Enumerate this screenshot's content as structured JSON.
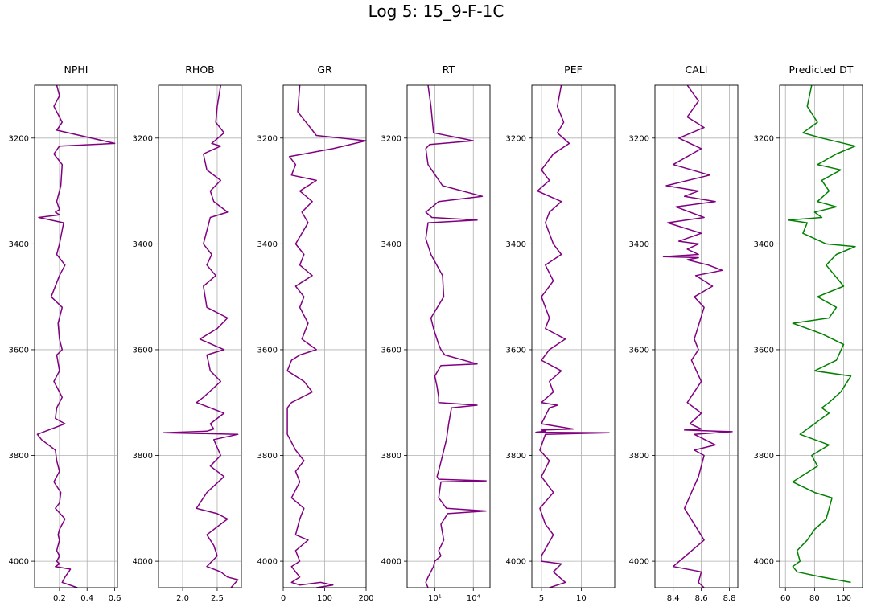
{
  "title": "Log 5: 15_9-F-1C",
  "colors": {
    "track": "#800080",
    "predicted": "#008000",
    "grid": "#b0b0b0",
    "axes": "#000000"
  },
  "chart_data": [
    {
      "type": "line",
      "title": "NPHI",
      "grid": true,
      "xscale": "linear",
      "xlim": [
        0.02,
        0.62
      ],
      "ylim": [
        4050,
        3100
      ],
      "xticks": [
        0.2,
        0.4,
        0.6
      ],
      "xticklabels": [
        "0.2",
        "0.4",
        "0.6"
      ],
      "yticks": [
        3200,
        3400,
        3600,
        3800,
        4000
      ],
      "yticklabels": [
        "3200",
        "3400",
        "3600",
        "3800",
        "4000"
      ],
      "series": [
        {
          "color": "#800080",
          "x": [
            0.18,
            0.2,
            0.16,
            0.22,
            0.18,
            0.6,
            0.2,
            0.16,
            0.22,
            0.21,
            0.18,
            0.2,
            0.17,
            0.2,
            0.05,
            0.23,
            0.2,
            0.18,
            0.24,
            0.2,
            0.14,
            0.22,
            0.19,
            0.2,
            0.22,
            0.18,
            0.2,
            0.16,
            0.22,
            0.2,
            0.18,
            0.17,
            0.24,
            0.04,
            0.07,
            0.17,
            0.18,
            0.2,
            0.16,
            0.21,
            0.2,
            0.17,
            0.24,
            0.2,
            0.19,
            0.2,
            0.18,
            0.2,
            0.18,
            0.2,
            0.17,
            0.28,
            0.24,
            0.22,
            0.33
          ],
          "y": [
            3100,
            3120,
            3140,
            3170,
            3185,
            3210,
            3215,
            3230,
            3250,
            3290,
            3320,
            3335,
            3340,
            3345,
            3350,
            3360,
            3400,
            3420,
            3440,
            3460,
            3500,
            3520,
            3550,
            3580,
            3600,
            3610,
            3640,
            3660,
            3690,
            3700,
            3710,
            3730,
            3740,
            3760,
            3770,
            3790,
            3810,
            3830,
            3850,
            3870,
            3890,
            3900,
            3920,
            3940,
            3950,
            3960,
            3980,
            3990,
            4000,
            4005,
            4010,
            4015,
            4030,
            4040,
            4050
          ]
        }
      ]
    },
    {
      "type": "line",
      "title": "RHOB",
      "grid": true,
      "xscale": "linear",
      "xlim": [
        1.65,
        2.85
      ],
      "ylim": [
        4050,
        3100
      ],
      "xticks": [
        2.0,
        2.5
      ],
      "xticklabels": [
        "2.0",
        "2.5"
      ],
      "yticks": [
        3200,
        3400,
        3600,
        3800,
        4000
      ],
      "yticklabels": [
        "3200",
        "3400",
        "3600",
        "3800",
        "4000"
      ],
      "series": [
        {
          "color": "#800080",
          "x": [
            2.55,
            2.5,
            2.48,
            2.6,
            2.42,
            2.55,
            2.3,
            2.35,
            2.55,
            2.4,
            2.45,
            2.65,
            2.4,
            2.3,
            2.42,
            2.35,
            2.48,
            2.3,
            2.35,
            2.65,
            2.5,
            2.25,
            2.6,
            2.35,
            2.4,
            2.55,
            2.3,
            2.2,
            2.6,
            2.4,
            2.45,
            2.35,
            1.72,
            2.8,
            2.45,
            2.55,
            2.4,
            2.6,
            2.35,
            2.2,
            2.5,
            2.65,
            2.35,
            2.45,
            2.5,
            2.35,
            2.55,
            2.65,
            2.8,
            2.7
          ],
          "y": [
            3100,
            3140,
            3170,
            3190,
            3210,
            3215,
            3230,
            3260,
            3280,
            3300,
            3320,
            3340,
            3350,
            3400,
            3420,
            3440,
            3460,
            3480,
            3520,
            3540,
            3560,
            3580,
            3600,
            3610,
            3640,
            3660,
            3690,
            3700,
            3720,
            3740,
            3750,
            3754,
            3757,
            3760,
            3770,
            3800,
            3820,
            3840,
            3870,
            3900,
            3910,
            3920,
            3950,
            3970,
            3990,
            4010,
            4020,
            4030,
            4035,
            4050
          ]
        }
      ]
    },
    {
      "type": "line",
      "title": "GR",
      "grid": true,
      "xscale": "linear",
      "xlim": [
        0,
        200
      ],
      "ylim": [
        4050,
        3100
      ],
      "xticks": [
        0,
        100,
        200
      ],
      "xticklabels": [
        "0",
        "100",
        "200"
      ],
      "yticks": [
        3200,
        3400,
        3600,
        3800,
        4000
      ],
      "yticklabels": [
        "3200",
        "3400",
        "3600",
        "3800",
        "4000"
      ],
      "series": [
        {
          "color": "#800080",
          "x": [
            40,
            35,
            55,
            70,
            80,
            200,
            120,
            15,
            30,
            20,
            80,
            40,
            70,
            45,
            60,
            30,
            50,
            40,
            70,
            30,
            50,
            40,
            60,
            45,
            80,
            40,
            20,
            10,
            50,
            70,
            20,
            10,
            10,
            30,
            50,
            30,
            40,
            20,
            50,
            40,
            30,
            60,
            30,
            40,
            20,
            30,
            40,
            20,
            40,
            90,
            120,
            80
          ],
          "y": [
            3100,
            3150,
            3170,
            3185,
            3195,
            3205,
            3220,
            3235,
            3250,
            3270,
            3280,
            3300,
            3320,
            3340,
            3360,
            3400,
            3420,
            3440,
            3460,
            3480,
            3500,
            3520,
            3550,
            3580,
            3600,
            3610,
            3620,
            3640,
            3660,
            3680,
            3700,
            3710,
            3760,
            3790,
            3810,
            3830,
            3850,
            3880,
            3900,
            3920,
            3950,
            3960,
            3980,
            4000,
            4010,
            4020,
            4030,
            4040,
            4045,
            4040,
            4045,
            4050
          ]
        }
      ]
    },
    {
      "type": "line",
      "title": "RT",
      "grid": true,
      "xscale": "log",
      "xlim": [
        0.07,
        200000
      ],
      "ylim": [
        4050,
        3100
      ],
      "xticks": [
        10,
        10000
      ],
      "xticklabels": [
        "10¹",
        "10⁴"
      ],
      "yticks": [
        3200,
        3400,
        3600,
        3800,
        4000
      ],
      "yticklabels": [
        "3200",
        "3400",
        "3600",
        "3800",
        "4000"
      ],
      "series": [
        {
          "color": "#800080",
          "x": [
            3,
            5,
            8,
            10000,
            4,
            2,
            3,
            40,
            50000,
            20,
            2,
            6,
            20000,
            3,
            2,
            5,
            40,
            50,
            5,
            8,
            20,
            30,
            60,
            20000,
            30,
            10,
            15,
            20,
            20,
            20000,
            200,
            120,
            80,
            40,
            25,
            15,
            20,
            100000,
            30,
            20,
            80,
            100000,
            100,
            30,
            50,
            20,
            30,
            10,
            8,
            3,
            2,
            3
          ],
          "y": [
            3100,
            3140,
            3190,
            3205,
            3212,
            3220,
            3250,
            3290,
            3310,
            3320,
            3340,
            3350,
            3355,
            3360,
            3390,
            3420,
            3460,
            3500,
            3540,
            3560,
            3590,
            3600,
            3610,
            3627,
            3630,
            3650,
            3670,
            3690,
            3700,
            3705,
            3710,
            3740,
            3770,
            3800,
            3820,
            3840,
            3845,
            3848,
            3850,
            3880,
            3900,
            3905,
            3910,
            3930,
            3960,
            3980,
            3990,
            4000,
            4010,
            4030,
            4040,
            4050
          ]
        }
      ]
    },
    {
      "type": "line",
      "title": "PEF",
      "grid": true,
      "xscale": "linear",
      "xlim": [
        3.8,
        14.2
      ],
      "ylim": [
        4050,
        3100
      ],
      "xticks": [
        5,
        10
      ],
      "xticklabels": [
        "5",
        "10"
      ],
      "yticks": [
        3200,
        3400,
        3600,
        3800,
        4000
      ],
      "yticklabels": [
        "3200",
        "3400",
        "3600",
        "3800",
        "4000"
      ],
      "series": [
        {
          "color": "#800080",
          "x": [
            7.5,
            7.0,
            7.8,
            7.0,
            8.5,
            6.5,
            5.0,
            6.0,
            4.5,
            7.5,
            6.0,
            5.5,
            6.5,
            7.5,
            5.5,
            6.5,
            5.0,
            6.0,
            5.5,
            8.0,
            6.0,
            5.0,
            7.5,
            6.0,
            6.5,
            5.0,
            7.0,
            6.0,
            5.0,
            9.0,
            5.0,
            5.5,
            4.3,
            13.5,
            5.5,
            4.8,
            6.0,
            5.0,
            6.5,
            4.8,
            5.5,
            6.5,
            5.0,
            5.0,
            7.5,
            6.5,
            8.0,
            6.0
          ],
          "y": [
            3100,
            3140,
            3170,
            3190,
            3210,
            3230,
            3260,
            3280,
            3300,
            3320,
            3340,
            3360,
            3400,
            3420,
            3440,
            3470,
            3500,
            3540,
            3560,
            3580,
            3600,
            3620,
            3640,
            3660,
            3680,
            3700,
            3705,
            3710,
            3740,
            3750,
            3752,
            3754,
            3756,
            3757,
            3760,
            3790,
            3810,
            3840,
            3870,
            3900,
            3930,
            3950,
            3990,
            4000,
            4005,
            4020,
            4040,
            4050
          ]
        }
      ]
    },
    {
      "type": "line",
      "title": "CALI",
      "grid": true,
      "xscale": "linear",
      "xlim": [
        8.27,
        8.86
      ],
      "ylim": [
        4050,
        3100
      ],
      "xticks": [
        8.4,
        8.6,
        8.8
      ],
      "xticklabels": [
        "8.4",
        "8.6",
        "8.8"
      ],
      "yticks": [
        3200,
        3400,
        3600,
        3800,
        4000
      ],
      "yticklabels": [
        "3200",
        "3400",
        "3600",
        "3800",
        "4000"
      ],
      "series": [
        {
          "color": "#800080",
          "x": [
            8.5,
            8.58,
            8.5,
            8.62,
            8.44,
            8.6,
            8.4,
            8.66,
            8.35,
            8.58,
            8.48,
            8.7,
            8.42,
            8.62,
            8.36,
            8.6,
            8.44,
            8.58,
            8.5,
            8.58,
            8.33,
            8.58,
            8.5,
            8.65,
            8.75,
            8.56,
            8.68,
            8.55,
            8.62,
            8.55,
            8.58,
            8.53,
            8.6,
            8.5,
            8.6,
            8.52,
            8.6,
            8.48,
            8.82,
            8.55,
            8.7,
            8.55,
            8.62,
            8.58,
            8.48,
            8.62,
            8.4,
            8.6,
            8.58,
            8.62
          ],
          "y": [
            3100,
            3130,
            3160,
            3180,
            3200,
            3220,
            3250,
            3270,
            3290,
            3300,
            3310,
            3320,
            3330,
            3350,
            3360,
            3380,
            3395,
            3400,
            3410,
            3420,
            3424,
            3426,
            3430,
            3440,
            3450,
            3460,
            3480,
            3500,
            3520,
            3580,
            3600,
            3620,
            3660,
            3700,
            3720,
            3740,
            3750,
            3752,
            3755,
            3760,
            3780,
            3790,
            3800,
            3840,
            3900,
            3960,
            4010,
            4020,
            4040,
            4050
          ]
        }
      ]
    },
    {
      "type": "line",
      "title": "Predicted DT",
      "grid": true,
      "xscale": "linear",
      "xlim": [
        56,
        113
      ],
      "ylim": [
        4050,
        3100
      ],
      "xticks": [
        60,
        80,
        100
      ],
      "xticklabels": [
        "60",
        "80",
        "100"
      ],
      "yticks": [
        3200,
        3400,
        3600,
        3800,
        4000
      ],
      "yticklabels": [
        "3200",
        "3400",
        "3600",
        "3800",
        "4000"
      ],
      "series": [
        {
          "color": "#008000",
          "x": [
            78,
            75,
            82,
            72,
            85,
            108,
            95,
            82,
            98,
            85,
            90,
            82,
            95,
            80,
            85,
            62,
            75,
            72,
            80,
            88,
            108,
            95,
            88,
            100,
            82,
            95,
            90,
            65,
            85,
            100,
            95,
            80,
            105,
            98,
            90,
            85,
            90,
            75,
            70,
            90,
            78,
            82,
            65,
            80,
            92,
            88,
            80,
            75,
            68,
            70,
            65,
            68,
            85,
            105
          ],
          "y": [
            3100,
            3140,
            3170,
            3190,
            3200,
            3215,
            3230,
            3250,
            3260,
            3280,
            3300,
            3320,
            3330,
            3340,
            3350,
            3355,
            3360,
            3380,
            3390,
            3400,
            3405,
            3420,
            3440,
            3480,
            3500,
            3520,
            3540,
            3550,
            3570,
            3590,
            3620,
            3640,
            3650,
            3680,
            3700,
            3710,
            3720,
            3750,
            3760,
            3780,
            3800,
            3820,
            3850,
            3870,
            3880,
            3920,
            3940,
            3960,
            3980,
            4000,
            4010,
            4020,
            4030,
            4040
          ]
        }
      ]
    }
  ]
}
